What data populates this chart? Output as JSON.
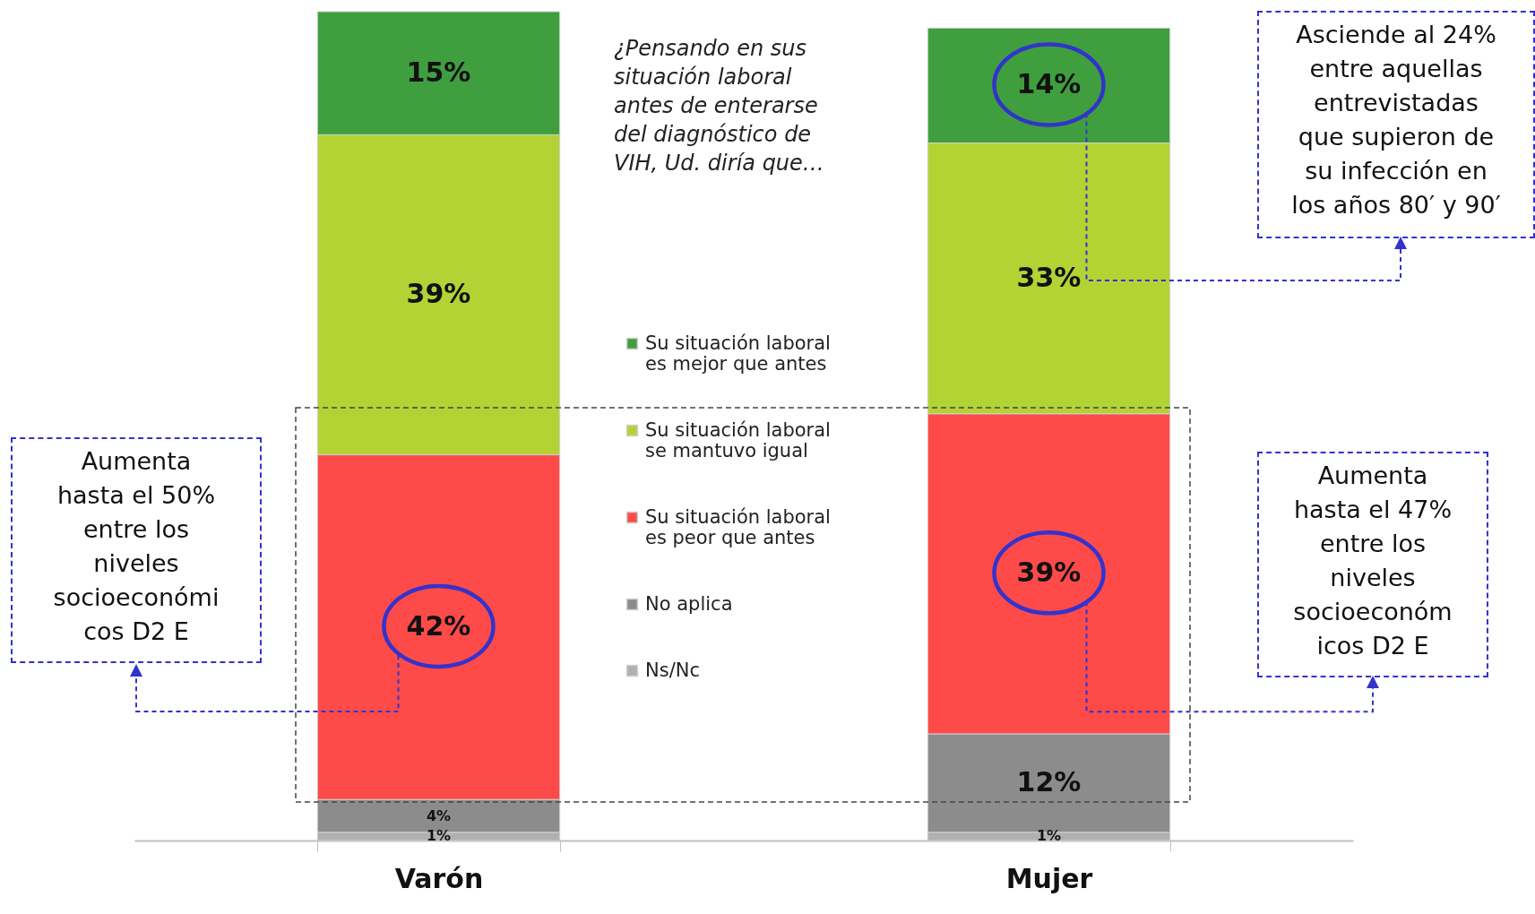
{
  "chart_data": {
    "type": "bar",
    "stacked": true,
    "categories": [
      "Varón",
      "Mujer"
    ],
    "series": [
      {
        "name": "Ns/Nc",
        "color": "#b0b0b0",
        "values": [
          1,
          1
        ],
        "value_labels": [
          "1%",
          "1%"
        ]
      },
      {
        "name": "No aplica",
        "color": "#8c8c8c",
        "values": [
          4,
          12
        ],
        "value_labels": [
          "4%",
          "12%"
        ]
      },
      {
        "name": "Su situación laboral es peor que antes",
        "color": "#ff4a4a",
        "values": [
          42,
          39
        ],
        "value_labels": [
          "42%",
          "39%"
        ]
      },
      {
        "name": "Su situación laboral se mantuvo igual",
        "color": "#b3d335",
        "values": [
          39,
          33
        ],
        "value_labels": [
          "39%",
          "33%"
        ]
      },
      {
        "name": "Su situación laboral es mejor que antes",
        "color": "#3f9f3f",
        "values": [
          15,
          14
        ],
        "value_labels": [
          "15%",
          "14%"
        ]
      }
    ],
    "tick_labels": "x",
    "legend": "center",
    "annotations": [
      "¿Pensando en sus\nsituación laboral\nantes de enterarse\ndel diagnóstico de\nVIH, Ud. diría que…",
      "Asciende al 24%\nentre aquellas\nentrevistadas\nque supieron de\nsu infección en\nlos años 80′ y 90′",
      "Aumenta\nhasta el 50%\nentre los\nniveles\nsocioeconómi\ncos D2 E",
      "Aumenta\nhasta el 47%\nentre los\nniveles\nsocioeconóm\nicos D2 E"
    ]
  }
}
